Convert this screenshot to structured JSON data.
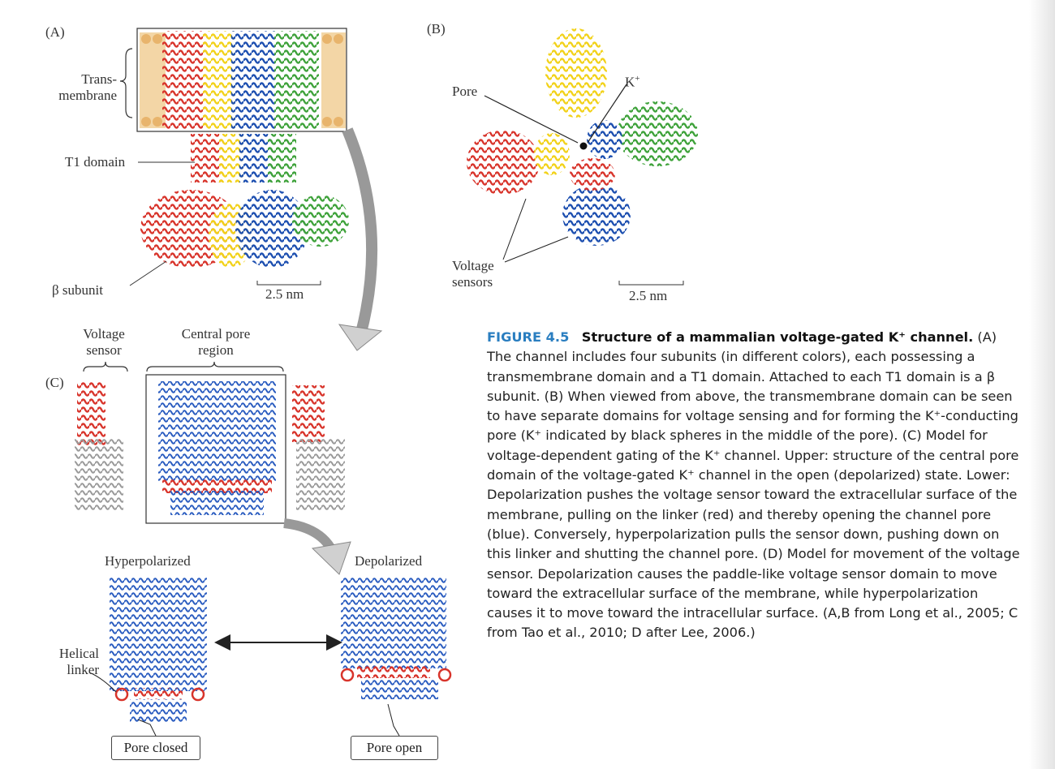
{
  "panel_a": {
    "letter": "(A)",
    "transmembrane_label": "Trans-\nmembrane",
    "t1_label": "T1 domain",
    "beta_label": "β subunit",
    "scale": "2.5 nm"
  },
  "panel_b": {
    "letter": "(B)",
    "pore_label": "Pore",
    "k_label": "K",
    "k_sup": "+",
    "voltage_label": "Voltage\nsensors",
    "scale": "2.5 nm"
  },
  "panel_c": {
    "letter": "(C)",
    "voltage_sensor_label": "Voltage\nsensor",
    "central_pore_label": "Central pore\nregion"
  },
  "panel_d": {
    "hyper_label": "Hyperpolarized",
    "depol_label": "Depolarized",
    "helical_label": "Helical\nlinker",
    "pore_closed": "Pore closed",
    "pore_open": "Pore open"
  },
  "caption": {
    "number": "FIGURE 4.5",
    "title": "Structure of a mammalian voltage-gated K⁺ channel.",
    "body": "(A) The channel includes four subunits (in different colors), each possessing a transmembrane domain and a T1 domain. Attached to each T1 domain is a β subunit. (B) When viewed from above, the transmembrane domain can be seen to have separate domains for voltage sensing and for forming the K⁺-conducting pore (K⁺ indicated by black spheres in the middle of the pore). (C) Model for voltage-dependent gating of the K⁺ channel. Upper: structure of the central pore domain of the voltage-gated K⁺ channel in the open (depolarized) state. Lower: Depolarization pushes the voltage sensor toward the extracellular surface of the membrane, pulling on the linker (red) and thereby opening the channel pore (blue). Conversely, hyperpolarization pulls the sensor down, pushing down on this linker and shutting the channel pore. (D) Model for movement of the voltage sensor. Depolarization causes the paddle-like voltage sensor domain to move toward the extracellular surface of the membrane, while hyperpolarization causes it to move toward the intracellular surface. (A,B from Long et al., 2005; C from Tao et al., 2010; D after Lee, 2006.)"
  },
  "colors": {
    "red": "#d8342b",
    "yellow": "#f2d21a",
    "blue": "#1d4fb0",
    "green": "#3ea23a",
    "lipid": "#e8b46c",
    "accent": "#2a7ec0"
  }
}
